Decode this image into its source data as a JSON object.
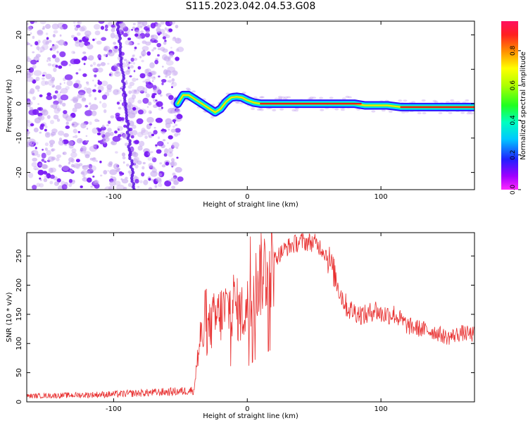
{
  "title": "S115.2023.042.04.53.G08",
  "colors": {
    "snr_line": "#e83030",
    "scatter_purple": "#7a1cf5",
    "axis": "#000000"
  },
  "colorbar": {
    "label": "Normalized spectral amplitude",
    "ticks": [
      "0.0",
      "0.2",
      "0.4",
      "0.6",
      "0.8"
    ],
    "tick_values": [
      0.0,
      0.2,
      0.4,
      0.6,
      0.8
    ],
    "range": [
      0,
      0.97
    ],
    "colormap": "gist_rainbow"
  },
  "chart_data": [
    {
      "type": "heatmap",
      "xlabel": "Height of straight line (km)",
      "ylabel": "Frequency (Hz)",
      "xlim": [
        -165,
        170
      ],
      "ylim": [
        -25,
        24
      ],
      "xticks": [
        -100,
        0,
        100
      ],
      "yticks": [
        -20,
        -10,
        0,
        10,
        20
      ],
      "noise_region_x": [
        -165,
        -50
      ],
      "ridge": {
        "x": [
          -52,
          -48,
          -44,
          -40,
          -36,
          -32,
          -28,
          -24,
          -20,
          -16,
          -12,
          -8,
          -4,
          0,
          5,
          10,
          20,
          40,
          60,
          80,
          88,
          95,
          105,
          115,
          125,
          140,
          160,
          170
        ],
        "y": [
          0,
          2.5,
          2.5,
          1.5,
          0.5,
          -0.5,
          -1.5,
          -2.5,
          -1.5,
          0.5,
          1.8,
          2.0,
          1.8,
          1.0,
          0.3,
          0,
          0,
          0,
          0,
          0,
          -0.5,
          -0.5,
          -0.5,
          -1.0,
          -1.0,
          -1.0,
          -1.0,
          -1.0
        ]
      }
    },
    {
      "type": "line",
      "xlabel": "Height of straight line (km)",
      "ylabel": "SNR (10 * v/v)",
      "xlim": [
        -165,
        170
      ],
      "ylim": [
        0,
        290
      ],
      "xticks": [
        -100,
        0,
        100
      ],
      "yticks": [
        0,
        50,
        100,
        150,
        200,
        250
      ],
      "series": [
        {
          "x": [
            -165,
            -140,
            -120,
            -100,
            -80,
            -60,
            -50,
            -40,
            -38,
            -35,
            -30,
            -25,
            -20,
            -15,
            -10,
            -8,
            -5,
            0,
            5,
            10,
            20,
            30,
            40,
            50,
            55,
            60,
            65,
            70,
            75,
            80,
            85,
            90,
            95,
            100,
            110,
            120,
            130,
            140,
            150,
            160,
            170
          ],
          "y": [
            10,
            11,
            12,
            13,
            15,
            17,
            18,
            20,
            60,
            110,
            120,
            140,
            150,
            160,
            170,
            160,
            150,
            160,
            190,
            220,
            245,
            265,
            275,
            273,
            265,
            250,
            220,
            185,
            160,
            155,
            150,
            148,
            160,
            150,
            150,
            130,
            125,
            120,
            110,
            118,
            115
          ]
        }
      ]
    }
  ]
}
